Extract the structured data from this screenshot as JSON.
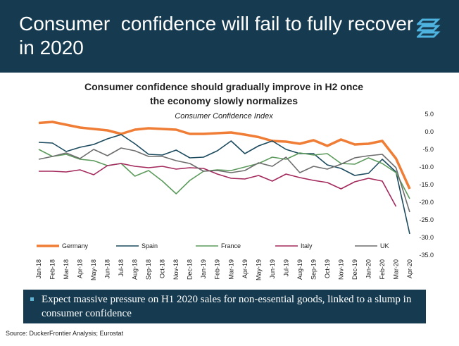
{
  "header": {
    "title": "Consumer  confidence will fail to fully recover in 2020"
  },
  "chart_data": {
    "type": "line",
    "title": "Consumer confidence should gradually improve in H2 once the economy slowly normalizes",
    "subtitle": "Consumer Confidence Index",
    "categories": [
      "Jan-18",
      "Feb-18",
      "Mar-18",
      "Apr-18",
      "May-18",
      "Jun-18",
      "Jul-18",
      "Aug-18",
      "Sep-18",
      "Oct-18",
      "Nov-18",
      "Dec-18",
      "Jan-19",
      "Feb-19",
      "Mar-19",
      "Apr-19",
      "May-19",
      "Jun-19",
      "Jul-19",
      "Aug-19",
      "Sep-19",
      "Oct-19",
      "Nov-19",
      "Dec-19",
      "Jan-20",
      "Feb-20",
      "Mar-20",
      "Apr-20"
    ],
    "series": [
      {
        "name": "Germany",
        "color": "#f07d35",
        "values": [
          2.5,
          2.8,
          2.0,
          1.2,
          0.8,
          0.4,
          -0.6,
          0.6,
          1.0,
          0.8,
          0.6,
          -0.6,
          -0.6,
          -0.4,
          -0.2,
          -0.8,
          -1.5,
          -2.6,
          -2.8,
          -3.4,
          -2.4,
          -4.0,
          -2.2,
          -3.6,
          -3.4,
          -2.6,
          -7.6,
          -16.2
        ]
      },
      {
        "name": "Spain",
        "color": "#1b4a5e",
        "values": [
          -3,
          -3.2,
          -5.6,
          -4.4,
          -3.6,
          -2,
          -0.8,
          -3.4,
          -6.4,
          -6.6,
          -5.2,
          -7.4,
          -7.2,
          -5.4,
          -2.6,
          -6.2,
          -4,
          -2.6,
          -5,
          -6.2,
          -6.2,
          -9.4,
          -10.4,
          -12.4,
          -11.8,
          -7.8,
          -11.4,
          -29
        ]
      },
      {
        "name": "France",
        "color": "#5c9b5c",
        "values": [
          -5,
          -7,
          -6.4,
          -7.8,
          -8.2,
          -9.6,
          -9,
          -12.6,
          -11,
          -14,
          -17.6,
          -13.8,
          -11.2,
          -10.8,
          -11,
          -10,
          -9,
          -7.2,
          -7.8,
          -6,
          -6.6,
          -6.2,
          -9,
          -9.2,
          -7.4,
          -9,
          -11.6,
          -19
        ]
      },
      {
        "name": "Italy",
        "color": "#a3285c",
        "values": [
          -11.2,
          -11.2,
          -11.4,
          -10.8,
          -12.2,
          -9.6,
          -9,
          -9.8,
          -10.2,
          -9.8,
          -10.6,
          -10.2,
          -10.4,
          -12,
          -13.2,
          -13.4,
          -12.4,
          -14,
          -12,
          -13,
          -13.8,
          -14.4,
          -16.2,
          -14.2,
          -13.2,
          -14,
          -21.2,
          null
        ]
      },
      {
        "name": "UK",
        "color": "#6d6d6d",
        "values": [
          -7.8,
          -7,
          -6,
          -7.6,
          -5,
          -6.8,
          -4.6,
          -5.4,
          -7,
          -7,
          -8.2,
          -9,
          -11.2,
          -11,
          -11.6,
          -11,
          -8.8,
          -9.8,
          -7.2,
          -11.6,
          -9.8,
          -10.6,
          -9.2,
          -7.4,
          -6.8,
          -6.4,
          -10.2,
          -22.8
        ]
      }
    ],
    "ylim": [
      -35,
      5
    ],
    "yticks": [
      {
        "value": 5,
        "label": "5.0"
      },
      {
        "value": 0,
        "label": "0.0"
      },
      {
        "value": -5,
        "label": "-5.0"
      },
      {
        "value": -10,
        "label": "-10.0"
      },
      {
        "value": -15,
        "label": "-15.0"
      },
      {
        "value": -20,
        "label": "-20.0"
      },
      {
        "value": -25,
        "label": "-25.0"
      },
      {
        "value": -30,
        "label": "-30.0"
      },
      {
        "value": -35,
        "label": "-35.0"
      }
    ]
  },
  "bullet": "Expect massive pressure on H1 2020 sales for non-essential goods, linked to a slump in consumer confidence",
  "source": "Source: DuckerFrontier Analysis; Eurostat"
}
